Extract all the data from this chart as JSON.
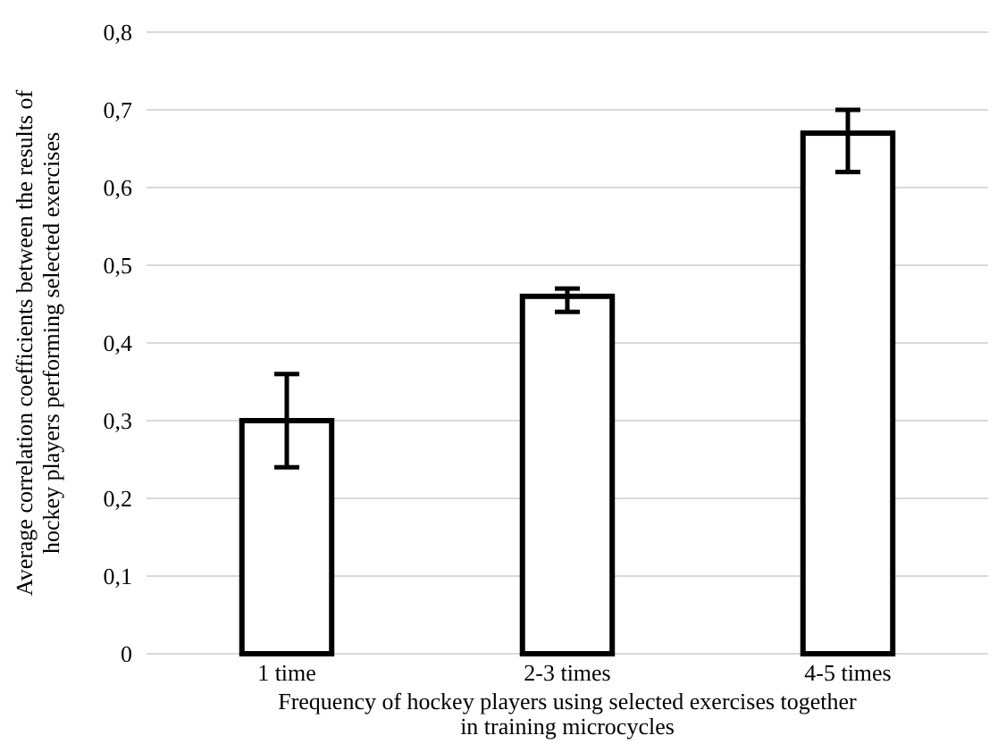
{
  "chart_data": {
    "type": "bar",
    "xlabel": "Frequency of hockey players using selected exercises together\nin training microcycles",
    "ylabel": "Average correlation coefficients between the results of\nhockey players performing selected exercises",
    "categories": [
      "1 time",
      "2-3 times",
      "4-5 times"
    ],
    "values": [
      0.3,
      0.46,
      0.67
    ],
    "errors": [
      [
        0.24,
        0.36
      ],
      [
        0.44,
        0.47
      ],
      [
        0.62,
        0.7
      ]
    ],
    "color": "#ffffff",
    "ylim": [
      0,
      0.8
    ],
    "yticks": [
      {
        "value": 0,
        "label": "0"
      },
      {
        "value": 0.1,
        "label": "0,1"
      },
      {
        "value": 0.2,
        "label": "0,2"
      },
      {
        "value": 0.3,
        "label": "0,3"
      },
      {
        "value": 0.4,
        "label": "0,4"
      },
      {
        "value": 0.5,
        "label": "0,5"
      },
      {
        "value": 0.6,
        "label": "0,6"
      },
      {
        "value": 0.7,
        "label": "0,7"
      },
      {
        "value": 0.8,
        "label": "0,8"
      }
    ],
    "grid": "y"
  }
}
